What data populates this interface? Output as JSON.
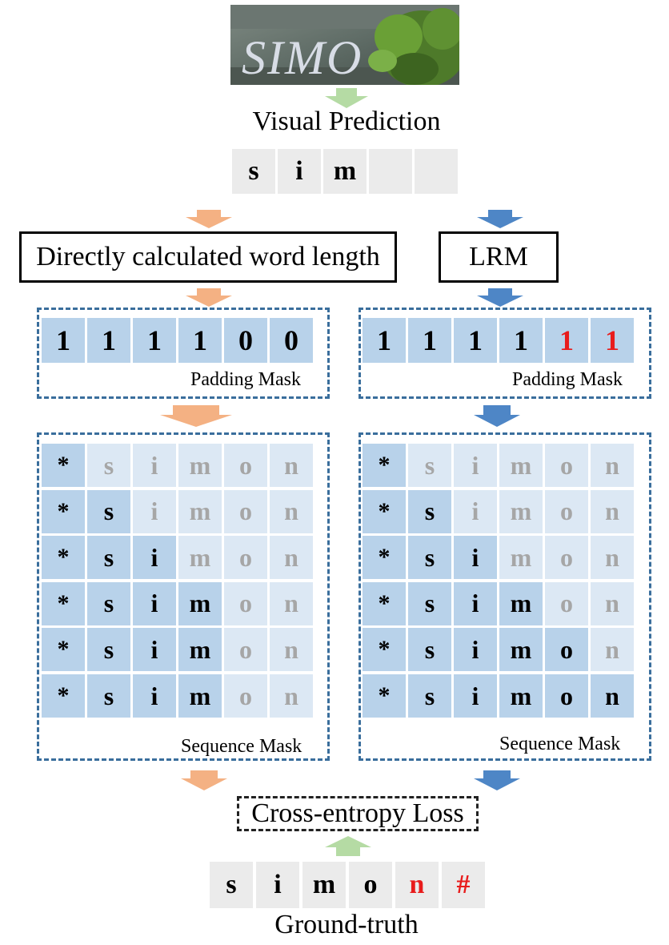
{
  "image_text": "SIMON",
  "visual_prediction_label": "Visual Prediction",
  "visual_prediction_cells": [
    "s",
    "i",
    "m",
    "",
    ""
  ],
  "left_box_label": "Directly calculated word length",
  "right_box_label": "LRM",
  "left_padding": [
    "1",
    "1",
    "1",
    "1",
    "0",
    "0"
  ],
  "right_padding": [
    "1",
    "1",
    "1",
    "1",
    "1",
    "1"
  ],
  "padding_mask_label": "Padding Mask",
  "sequence_row": [
    "*",
    "s",
    "i",
    "m",
    "o",
    "n"
  ],
  "sequence_mask_label": "Sequence Mask",
  "loss_label": "Cross-entropy Loss",
  "ground_truth_cells": [
    "s",
    "i",
    "m",
    "o",
    "n",
    "#"
  ],
  "ground_truth_label": "Ground-truth",
  "colors": {
    "orange_arrow": "#f4b183",
    "blue_arrow": "#4e86c6",
    "green_arrow": "#b5dba4",
    "mask_dark": "#b8d2ea",
    "mask_light": "#dce8f4",
    "grey_cell": "#ebebeb",
    "faded_text": "#a6a6a6",
    "highlight_red": "#e81c1c",
    "dash_blue": "#3a6e9c"
  }
}
